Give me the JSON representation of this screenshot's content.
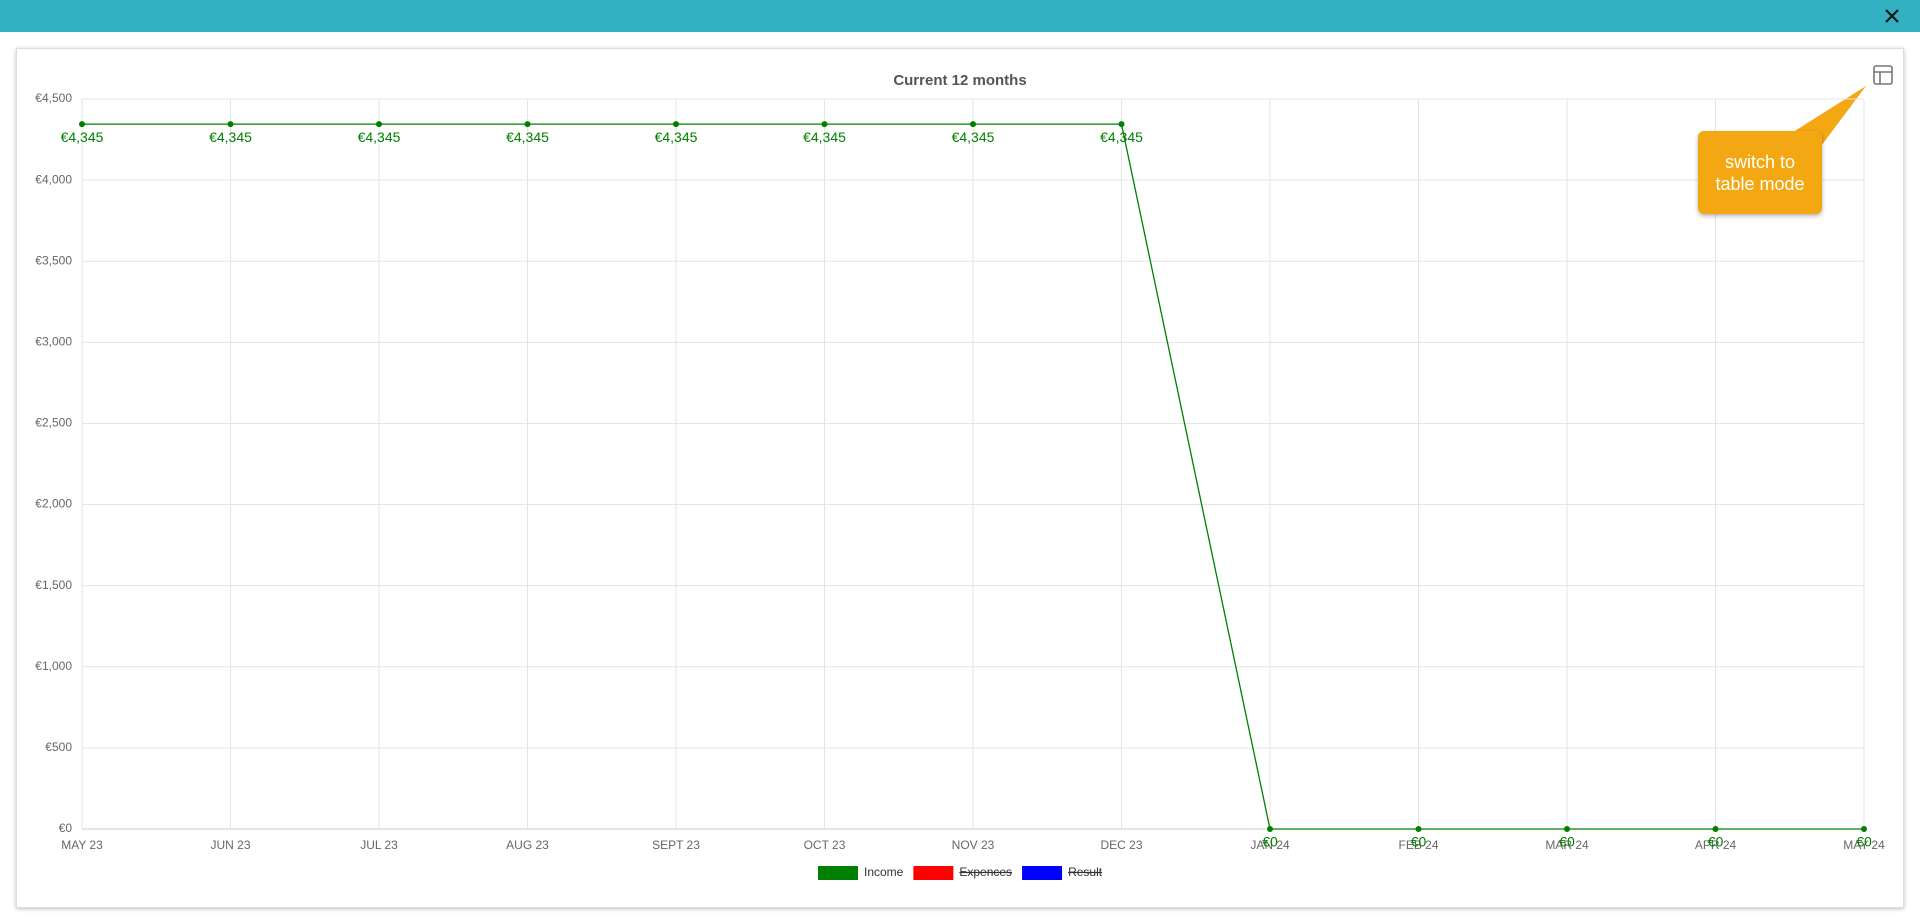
{
  "chart_data": {
    "type": "line",
    "title": "Current 12 months",
    "categories": [
      "MAY 23",
      "JUN 23",
      "JUL 23",
      "AUG 23",
      "SEPT 23",
      "OCT 23",
      "NOV 23",
      "DEC 23",
      "JAN 24",
      "FEB 24",
      "MAR 24",
      "APR 24",
      "MAY 24"
    ],
    "series": [
      {
        "name": "Income",
        "color": "#008000",
        "hidden": false,
        "values": [
          4345,
          4345,
          4345,
          4345,
          4345,
          4345,
          4345,
          4345,
          0,
          0,
          0,
          0,
          0
        ],
        "value_labels": [
          "€4,345",
          "€4,345",
          "€4,345",
          "€4,345",
          "€4,345",
          "€4,345",
          "€4,345",
          "€4,345",
          "€0",
          "€0",
          "€0",
          "€0",
          "€0"
        ]
      },
      {
        "name": "Expences",
        "color": "#ff0000",
        "hidden": true,
        "values": [
          null,
          null,
          null,
          null,
          null,
          null,
          null,
          null,
          null,
          null,
          null,
          null,
          null
        ]
      },
      {
        "name": "Result",
        "color": "#0000ff",
        "hidden": true,
        "values": [
          null,
          null,
          null,
          null,
          null,
          null,
          null,
          null,
          null,
          null,
          null,
          null,
          null
        ]
      }
    ],
    "ylim": [
      0,
      4500
    ],
    "yticks": [
      {
        "value": 0,
        "label": "€0"
      },
      {
        "value": 500,
        "label": "€500"
      },
      {
        "value": 1000,
        "label": "€1,000"
      },
      {
        "value": 1500,
        "label": "€1,500"
      },
      {
        "value": 2000,
        "label": "€2,000"
      },
      {
        "value": 2500,
        "label": "€2,500"
      },
      {
        "value": 3000,
        "label": "€3,000"
      },
      {
        "value": 3500,
        "label": "€3,500"
      },
      {
        "value": 4000,
        "label": "€4,000"
      },
      {
        "value": 4500,
        "label": "€4,500"
      }
    ],
    "grid": true,
    "legend": "bottom"
  },
  "tooltip": "switch to table mode"
}
